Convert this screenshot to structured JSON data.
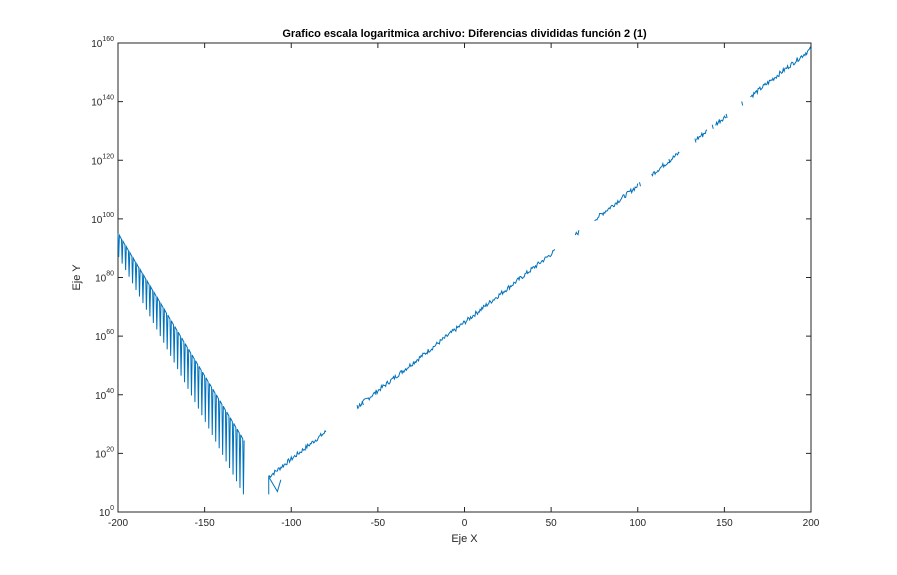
{
  "chart_data": {
    "type": "line",
    "title": "Grafico escala logaritmica archivo: Diferencias divididas función 2 (1)",
    "xlabel": "Eje X",
    "ylabel": "Eje Y",
    "xlim": [
      -200,
      200
    ],
    "ylim_exponent": [
      0,
      160
    ],
    "yscale": "log",
    "grid": false,
    "legend": "none",
    "x_ticks": [
      {
        "value": -200,
        "label": "-200"
      },
      {
        "value": -150,
        "label": "-150"
      },
      {
        "value": -100,
        "label": "-100"
      },
      {
        "value": -50,
        "label": "-50"
      },
      {
        "value": 0,
        "label": "0"
      },
      {
        "value": 50,
        "label": "50"
      },
      {
        "value": 100,
        "label": "100"
      },
      {
        "value": 150,
        "label": "150"
      },
      {
        "value": 200,
        "label": "200"
      }
    ],
    "y_ticks": [
      {
        "exponent": 0,
        "base": "10",
        "power": "0"
      },
      {
        "exponent": 20,
        "base": "10",
        "power": "20"
      },
      {
        "exponent": 40,
        "base": "10",
        "power": "40"
      },
      {
        "exponent": 60,
        "base": "10",
        "power": "60"
      },
      {
        "exponent": 80,
        "base": "10",
        "power": "80"
      },
      {
        "exponent": 100,
        "base": "10",
        "power": "100"
      },
      {
        "exponent": 120,
        "base": "10",
        "power": "120"
      },
      {
        "exponent": 140,
        "base": "10",
        "power": "140"
      },
      {
        "exponent": 160,
        "base": "10",
        "power": "160"
      }
    ],
    "series": [
      {
        "color": "#0072bd",
        "left_branch": {
          "x_start": -200,
          "x_end": -128,
          "step": 2,
          "top_log10_start": 95,
          "top_log10_end": 25,
          "bottom_log10_start": 87,
          "bottom_log10_end": 6
        },
        "right_branch": {
          "x_start": -113,
          "x_end": 200,
          "log10_start": 12,
          "log10_end": 158,
          "gaps": [
            [
              -80,
              -62
            ],
            [
              52,
              64
            ],
            [
              66,
              75
            ],
            [
              100,
              108
            ],
            [
              124,
              134
            ],
            [
              140,
              145
            ],
            [
              151,
              165
            ]
          ],
          "isolated_points": [
            -59,
            -62,
            101,
            118,
            133,
            137,
            143,
            147,
            151,
            160
          ]
        }
      }
    ]
  }
}
